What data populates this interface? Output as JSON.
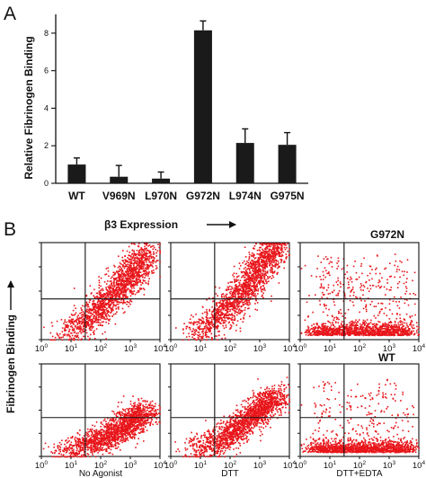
{
  "figure": {
    "panel_a_letter": "A",
    "panel_b_letter": "B"
  },
  "chart_data": [
    {
      "type": "bar",
      "ylabel": "Relative Fibrinogen Binding",
      "xlabel": "",
      "categories": [
        "WT",
        "V969N",
        "L970N",
        "G972N",
        "L974N",
        "G975N"
      ],
      "values": [
        1.0,
        0.35,
        0.25,
        8.15,
        2.15,
        2.05
      ],
      "errors": [
        0.35,
        0.6,
        0.35,
        0.5,
        0.75,
        0.65
      ],
      "ylim": [
        0,
        9
      ],
      "yticks": [
        "0",
        "2",
        "4",
        "6",
        "8"
      ],
      "bar_color": "#1a1a1a"
    },
    {
      "type": "scatter",
      "kind": "flow-cytometry-dot-plots",
      "x_title": "β3 Expression",
      "y_title": "Fibrinogen Binding",
      "x_scale": "log",
      "y_scale": "log",
      "xlim": [
        1,
        10000
      ],
      "decades": [
        {
          "base": "10",
          "exp": "0"
        },
        {
          "base": "10",
          "exp": "1"
        },
        {
          "base": "10",
          "exp": "2"
        },
        {
          "base": "10",
          "exp": "3"
        },
        {
          "base": "10",
          "exp": "4"
        }
      ],
      "dot_color": "#e8161b",
      "row_labels": [
        "G972N",
        "WT"
      ],
      "column_labels": [
        "No Agonist",
        "DTT",
        "DTT+EDTA"
      ]
    }
  ]
}
